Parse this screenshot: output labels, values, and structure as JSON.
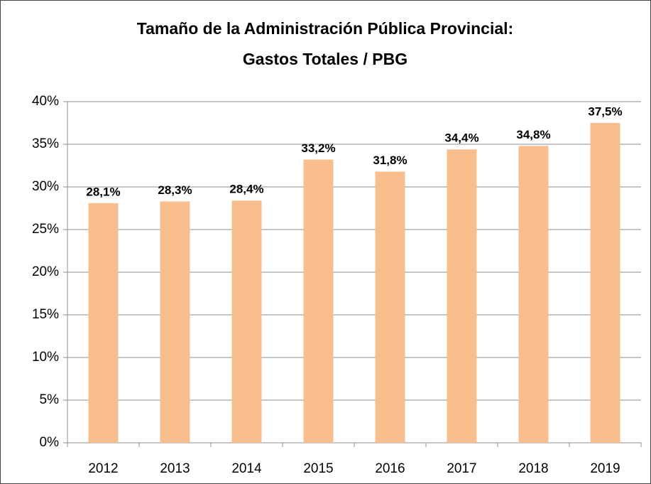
{
  "chart_data": {
    "type": "bar",
    "title": [
      "Tamaño de la Administración Pública Provincial:",
      "Gastos Totales / PBG"
    ],
    "categories": [
      "2012",
      "2013",
      "2014",
      "2015",
      "2016",
      "2017",
      "2018",
      "2019"
    ],
    "values": [
      28.1,
      28.3,
      28.4,
      33.2,
      31.8,
      34.4,
      34.8,
      37.5
    ],
    "value_labels": [
      "28,1%",
      "28,3%",
      "28,4%",
      "33,2%",
      "31,8%",
      "34,4%",
      "34,8%",
      "37,5%"
    ],
    "color": "#f9be8e",
    "ylim": [
      0,
      40
    ],
    "yticks": [
      {
        "value": 0,
        "label": "0%"
      },
      {
        "value": 5,
        "label": "5%"
      },
      {
        "value": 10,
        "label": "10%"
      },
      {
        "value": 15,
        "label": "15%"
      },
      {
        "value": 20,
        "label": "20%"
      },
      {
        "value": 25,
        "label": "25%"
      },
      {
        "value": 30,
        "label": "30%"
      },
      {
        "value": 35,
        "label": "35%"
      },
      {
        "value": 40,
        "label": "40%"
      }
    ],
    "grid": true
  }
}
